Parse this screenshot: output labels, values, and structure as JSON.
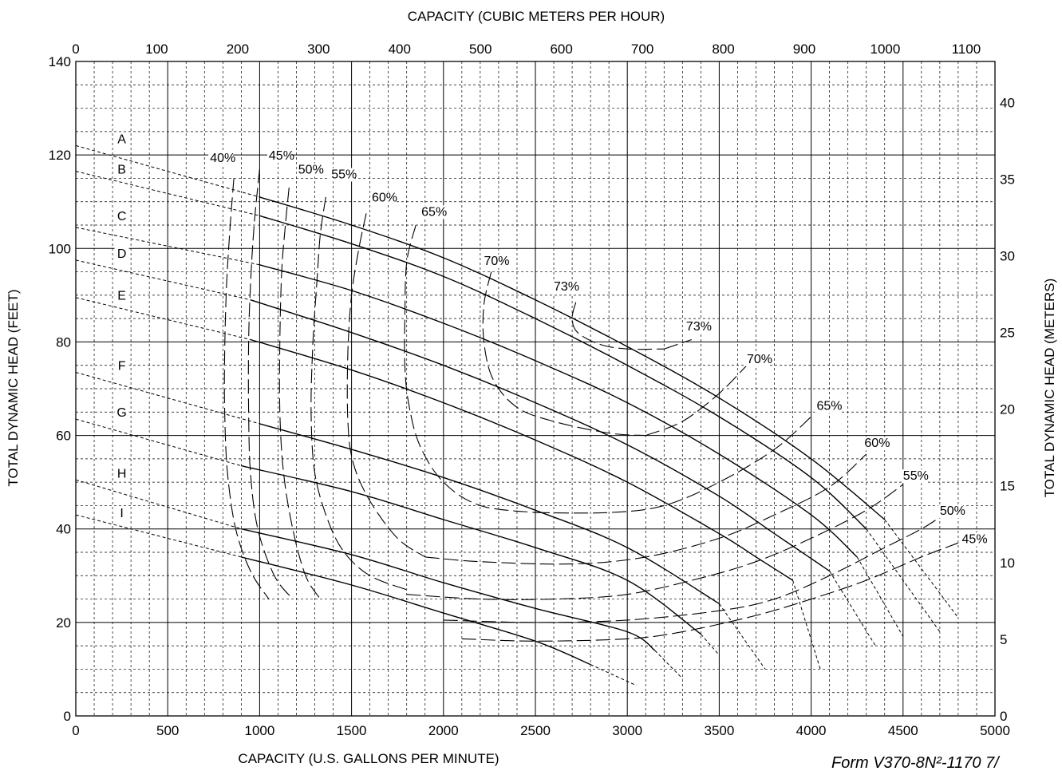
{
  "chart_data": {
    "type": "line",
    "title": "",
    "xlabel": "CAPACITY (U.S. GALLONS PER MINUTE)",
    "ylabel": "TOTAL DYNAMIC HEAD (FEET)",
    "x2label": "CAPACITY (CUBIC METERS PER HOUR)",
    "y2label": "TOTAL DYNAMIC HEAD (METERS)",
    "xlim": [
      0,
      5000
    ],
    "ylim": [
      0,
      140
    ],
    "x2lim": [
      0,
      1135.6
    ],
    "y2lim": [
      0,
      42.67
    ],
    "grid": true,
    "xticks": [
      "0",
      "500",
      "1000",
      "1500",
      "2000",
      "2500",
      "3000",
      "3500",
      "4000",
      "4500",
      "5000"
    ],
    "yticks": [
      "0",
      "20",
      "40",
      "60",
      "80",
      "100",
      "120",
      "140"
    ],
    "x2ticks": [
      "0",
      "100",
      "200",
      "300",
      "400",
      "500",
      "600",
      "700",
      "800",
      "900",
      "1000",
      "1100"
    ],
    "y2ticks": [
      "0",
      "5",
      "10",
      "15",
      "20",
      "25",
      "30",
      "35",
      "40"
    ],
    "series": [
      {
        "name": "A",
        "style": "solid",
        "label_at": [
          250,
          122.5
        ],
        "values": [
          [
            1000,
            111
          ],
          [
            1500,
            105
          ],
          [
            2000,
            98
          ],
          [
            2500,
            89
          ],
          [
            3000,
            79
          ],
          [
            3500,
            68
          ],
          [
            4000,
            55
          ],
          [
            4400,
            42
          ]
        ],
        "dashed_start": [
          [
            0,
            122
          ],
          [
            1000,
            111
          ]
        ],
        "dashed_end": [
          [
            4400,
            42
          ],
          [
            4800,
            21
          ]
        ]
      },
      {
        "name": "B",
        "style": "solid",
        "label_at": [
          250,
          116
        ],
        "values": [
          [
            1000,
            107
          ],
          [
            1500,
            101
          ],
          [
            2000,
            94
          ],
          [
            2500,
            85
          ],
          [
            3000,
            75
          ],
          [
            3500,
            64
          ],
          [
            4000,
            51
          ],
          [
            4300,
            40
          ]
        ],
        "dashed_start": [
          [
            0,
            116.5
          ],
          [
            1000,
            107
          ]
        ],
        "dashed_end": [
          [
            4300,
            40
          ],
          [
            4700,
            18
          ]
        ]
      },
      {
        "name": "C",
        "style": "solid",
        "label_at": [
          250,
          106
        ],
        "values": [
          [
            1000,
            96.5
          ],
          [
            1500,
            91
          ],
          [
            2000,
            84
          ],
          [
            2500,
            76
          ],
          [
            3000,
            67
          ],
          [
            3500,
            56
          ],
          [
            4000,
            43
          ],
          [
            4250,
            34
          ]
        ],
        "dashed_start": [
          [
            0,
            104.5
          ],
          [
            1000,
            96.5
          ]
        ],
        "dashed_end": [
          [
            4250,
            34
          ],
          [
            4500,
            17
          ]
        ]
      },
      {
        "name": "D",
        "style": "solid",
        "label_at": [
          250,
          98
        ],
        "values": [
          [
            950,
            89
          ],
          [
            1500,
            82
          ],
          [
            2000,
            75
          ],
          [
            2500,
            67
          ],
          [
            3000,
            58
          ],
          [
            3500,
            47
          ],
          [
            3800,
            39
          ],
          [
            4100,
            31
          ]
        ],
        "dashed_start": [
          [
            0,
            97.5
          ],
          [
            950,
            89
          ]
        ],
        "dashed_end": [
          [
            4100,
            31
          ],
          [
            4350,
            15
          ]
        ]
      },
      {
        "name": "E",
        "style": "solid",
        "label_at": [
          250,
          89
        ],
        "values": [
          [
            950,
            80.5
          ],
          [
            1500,
            74
          ],
          [
            2000,
            67
          ],
          [
            2500,
            59
          ],
          [
            3000,
            50
          ],
          [
            3500,
            39
          ],
          [
            3700,
            34
          ],
          [
            3900,
            29
          ]
        ],
        "dashed_start": [
          [
            0,
            89.5
          ],
          [
            950,
            80.5
          ]
        ],
        "dashed_end": [
          [
            3900,
            29
          ],
          [
            4050,
            10
          ]
        ]
      },
      {
        "name": "F",
        "style": "solid",
        "label_at": [
          250,
          74
        ],
        "values": [
          [
            1000,
            62.5
          ],
          [
            1500,
            57
          ],
          [
            2000,
            51
          ],
          [
            2500,
            44
          ],
          [
            3000,
            36
          ],
          [
            3500,
            24
          ]
        ],
        "dashed_start": [
          [
            0,
            73.5
          ],
          [
            1000,
            62.5
          ]
        ],
        "dashed_end": [
          [
            3500,
            24
          ],
          [
            3750,
            10
          ]
        ]
      },
      {
        "name": "G",
        "style": "solid",
        "label_at": [
          250,
          64
        ],
        "values": [
          [
            900,
            53.5
          ],
          [
            1500,
            48
          ],
          [
            2000,
            42
          ],
          [
            2500,
            36
          ],
          [
            3000,
            29
          ],
          [
            3400,
            17.5
          ]
        ],
        "dashed_start": [
          [
            0,
            63.5
          ],
          [
            900,
            53.5
          ]
        ],
        "dashed_end": [
          [
            3400,
            17.5
          ],
          [
            3500,
            13
          ]
        ]
      },
      {
        "name": "H",
        "style": "solid",
        "label_at": [
          250,
          51
        ],
        "values": [
          [
            900,
            40
          ],
          [
            1500,
            34.5
          ],
          [
            2000,
            28.5
          ],
          [
            2500,
            23
          ],
          [
            3000,
            18
          ],
          [
            3150,
            14
          ]
        ],
        "dashed_start": [
          [
            0,
            50.5
          ],
          [
            900,
            40
          ]
        ],
        "dashed_end": [
          [
            3150,
            14
          ],
          [
            3300,
            8
          ]
        ]
      },
      {
        "name": "I",
        "style": "solid",
        "label_at": [
          250,
          42.5
        ],
        "values": [
          [
            900,
            34
          ],
          [
            1500,
            28
          ],
          [
            2000,
            22
          ],
          [
            2500,
            16
          ],
          [
            2800,
            11
          ]
        ],
        "dashed_start": [
          [
            0,
            43
          ],
          [
            900,
            34
          ]
        ],
        "dashed_end": [
          [
            2800,
            11
          ],
          [
            3050,
            6.5
          ]
        ]
      }
    ],
    "efficiency_curves": [
      {
        "name": "40%",
        "label_at": [
          730,
          118.5
        ],
        "values": [
          [
            860,
            115
          ],
          [
            840,
            105
          ],
          [
            820,
            92
          ],
          [
            810,
            78
          ],
          [
            810,
            65
          ],
          [
            825,
            52
          ],
          [
            870,
            40
          ],
          [
            950,
            31
          ],
          [
            1050,
            25
          ]
        ]
      },
      {
        "name": "45% (left)",
        "label_at": [
          1050,
          119
        ],
        "values": [
          [
            1000,
            117
          ],
          [
            970,
            105
          ],
          [
            950,
            92
          ],
          [
            940,
            80
          ],
          [
            940,
            65
          ],
          [
            950,
            52
          ],
          [
            990,
            40
          ],
          [
            1080,
            30
          ],
          [
            1180,
            25
          ]
        ]
      },
      {
        "name": "45% (right)",
        "label_at": [
          4820,
          37
        ],
        "values": [
          [
            2100,
            16.5
          ],
          [
            2500,
            16
          ],
          [
            3000,
            16.5
          ],
          [
            3300,
            18
          ],
          [
            3700,
            21.5
          ],
          [
            4000,
            25
          ],
          [
            4300,
            29
          ],
          [
            4600,
            34
          ],
          [
            4800,
            37
          ]
        ]
      },
      {
        "name": "50% (left)",
        "label_at": [
          1210,
          116
        ],
        "values": [
          [
            1160,
            113
          ],
          [
            1140,
            105
          ],
          [
            1120,
            95
          ],
          [
            1110,
            80
          ],
          [
            1110,
            65
          ],
          [
            1130,
            52
          ],
          [
            1180,
            40
          ],
          [
            1250,
            30
          ],
          [
            1330,
            25
          ]
        ]
      },
      {
        "name": "50% (right)",
        "label_at": [
          4700,
          43
        ],
        "values": [
          [
            2000,
            20.5
          ],
          [
            2500,
            20
          ],
          [
            3000,
            20.5
          ],
          [
            3500,
            22.5
          ],
          [
            3800,
            25
          ],
          [
            4100,
            30
          ],
          [
            4400,
            36
          ],
          [
            4600,
            40
          ],
          [
            4700,
            42.5
          ]
        ]
      },
      {
        "name": "55% (left)",
        "label_at": [
          1390,
          115
        ],
        "values": [
          [
            1360,
            111
          ],
          [
            1330,
            103
          ],
          [
            1310,
            92
          ],
          [
            1290,
            80
          ],
          [
            1280,
            65
          ],
          [
            1300,
            52
          ],
          [
            1370,
            42
          ],
          [
            1460,
            35
          ],
          [
            1600,
            30
          ],
          [
            1800,
            27
          ]
        ]
      },
      {
        "name": "55% (right)",
        "label_at": [
          4500,
          50.5
        ],
        "values": [
          [
            1800,
            26
          ],
          [
            2200,
            25
          ],
          [
            2600,
            25
          ],
          [
            3000,
            26
          ],
          [
            3400,
            29.5
          ],
          [
            3700,
            33
          ],
          [
            4000,
            38
          ],
          [
            4300,
            44
          ],
          [
            4500,
            49.5
          ]
        ]
      },
      {
        "name": "60% (left)",
        "label_at": [
          1610,
          110
        ],
        "values": [
          [
            1580,
            107.5
          ],
          [
            1540,
            100
          ],
          [
            1500,
            90
          ],
          [
            1480,
            78
          ],
          [
            1480,
            63
          ],
          [
            1510,
            54
          ],
          [
            1600,
            46
          ],
          [
            1750,
            38
          ],
          [
            1900,
            34
          ]
        ]
      },
      {
        "name": "60% (right)",
        "label_at": [
          4290,
          57.5
        ],
        "values": [
          [
            1900,
            34
          ],
          [
            2200,
            33
          ],
          [
            2700,
            32.5
          ],
          [
            3100,
            34
          ],
          [
            3500,
            38
          ],
          [
            3800,
            43
          ],
          [
            4100,
            49
          ],
          [
            4300,
            56
          ]
        ]
      },
      {
        "name": "65% (left)",
        "label_at": [
          1880,
          107
        ],
        "values": [
          [
            1850,
            105
          ],
          [
            1800,
            97
          ],
          [
            1790,
            85
          ],
          [
            1790,
            75
          ],
          [
            1810,
            67
          ],
          [
            1870,
            58
          ],
          [
            2000,
            50
          ],
          [
            2200,
            45
          ],
          [
            2500,
            43.5
          ]
        ]
      },
      {
        "name": "65% (right)",
        "label_at": [
          4030,
          65.5
        ],
        "values": [
          [
            2500,
            43.5
          ],
          [
            2900,
            43.5
          ],
          [
            3200,
            45
          ],
          [
            3500,
            50
          ],
          [
            3800,
            57
          ],
          [
            4000,
            64
          ]
        ]
      },
      {
        "name": "70% (left)",
        "label_at": [
          2220,
          96.5
        ],
        "values": [
          [
            2260,
            95
          ],
          [
            2220,
            88
          ],
          [
            2220,
            80
          ],
          [
            2270,
            72
          ],
          [
            2400,
            66
          ],
          [
            2600,
            63
          ],
          [
            2900,
            60.5
          ],
          [
            3100,
            60
          ]
        ]
      },
      {
        "name": "70% (right)",
        "label_at": [
          3650,
          75.5
        ],
        "values": [
          [
            3100,
            60
          ],
          [
            3300,
            63
          ],
          [
            3500,
            69
          ],
          [
            3650,
            75
          ]
        ]
      },
      {
        "name": "73% (left)",
        "label_at": [
          2600,
          91
        ],
        "values": [
          [
            2720,
            88.5
          ],
          [
            2700,
            85
          ],
          [
            2730,
            82
          ],
          [
            2850,
            79.5
          ],
          [
            3000,
            78.5
          ],
          [
            3200,
            78.5
          ]
        ]
      },
      {
        "name": "73% (right)",
        "label_at": [
          3320,
          82.5
        ],
        "values": [
          [
            3200,
            78.5
          ],
          [
            3350,
            80.5
          ]
        ]
      }
    ],
    "curve_labels": [
      "A",
      "B",
      "C",
      "D",
      "E",
      "F",
      "G",
      "H",
      "I"
    ],
    "efficiency_labels": [
      "40%",
      "45%",
      "50%",
      "55%",
      "60%",
      "65%",
      "70%",
      "73%",
      "73%",
      "70%",
      "65%",
      "60%",
      "55%",
      "50%",
      "45%"
    ],
    "footnote": "Form V370-8N²-1170  7/"
  }
}
